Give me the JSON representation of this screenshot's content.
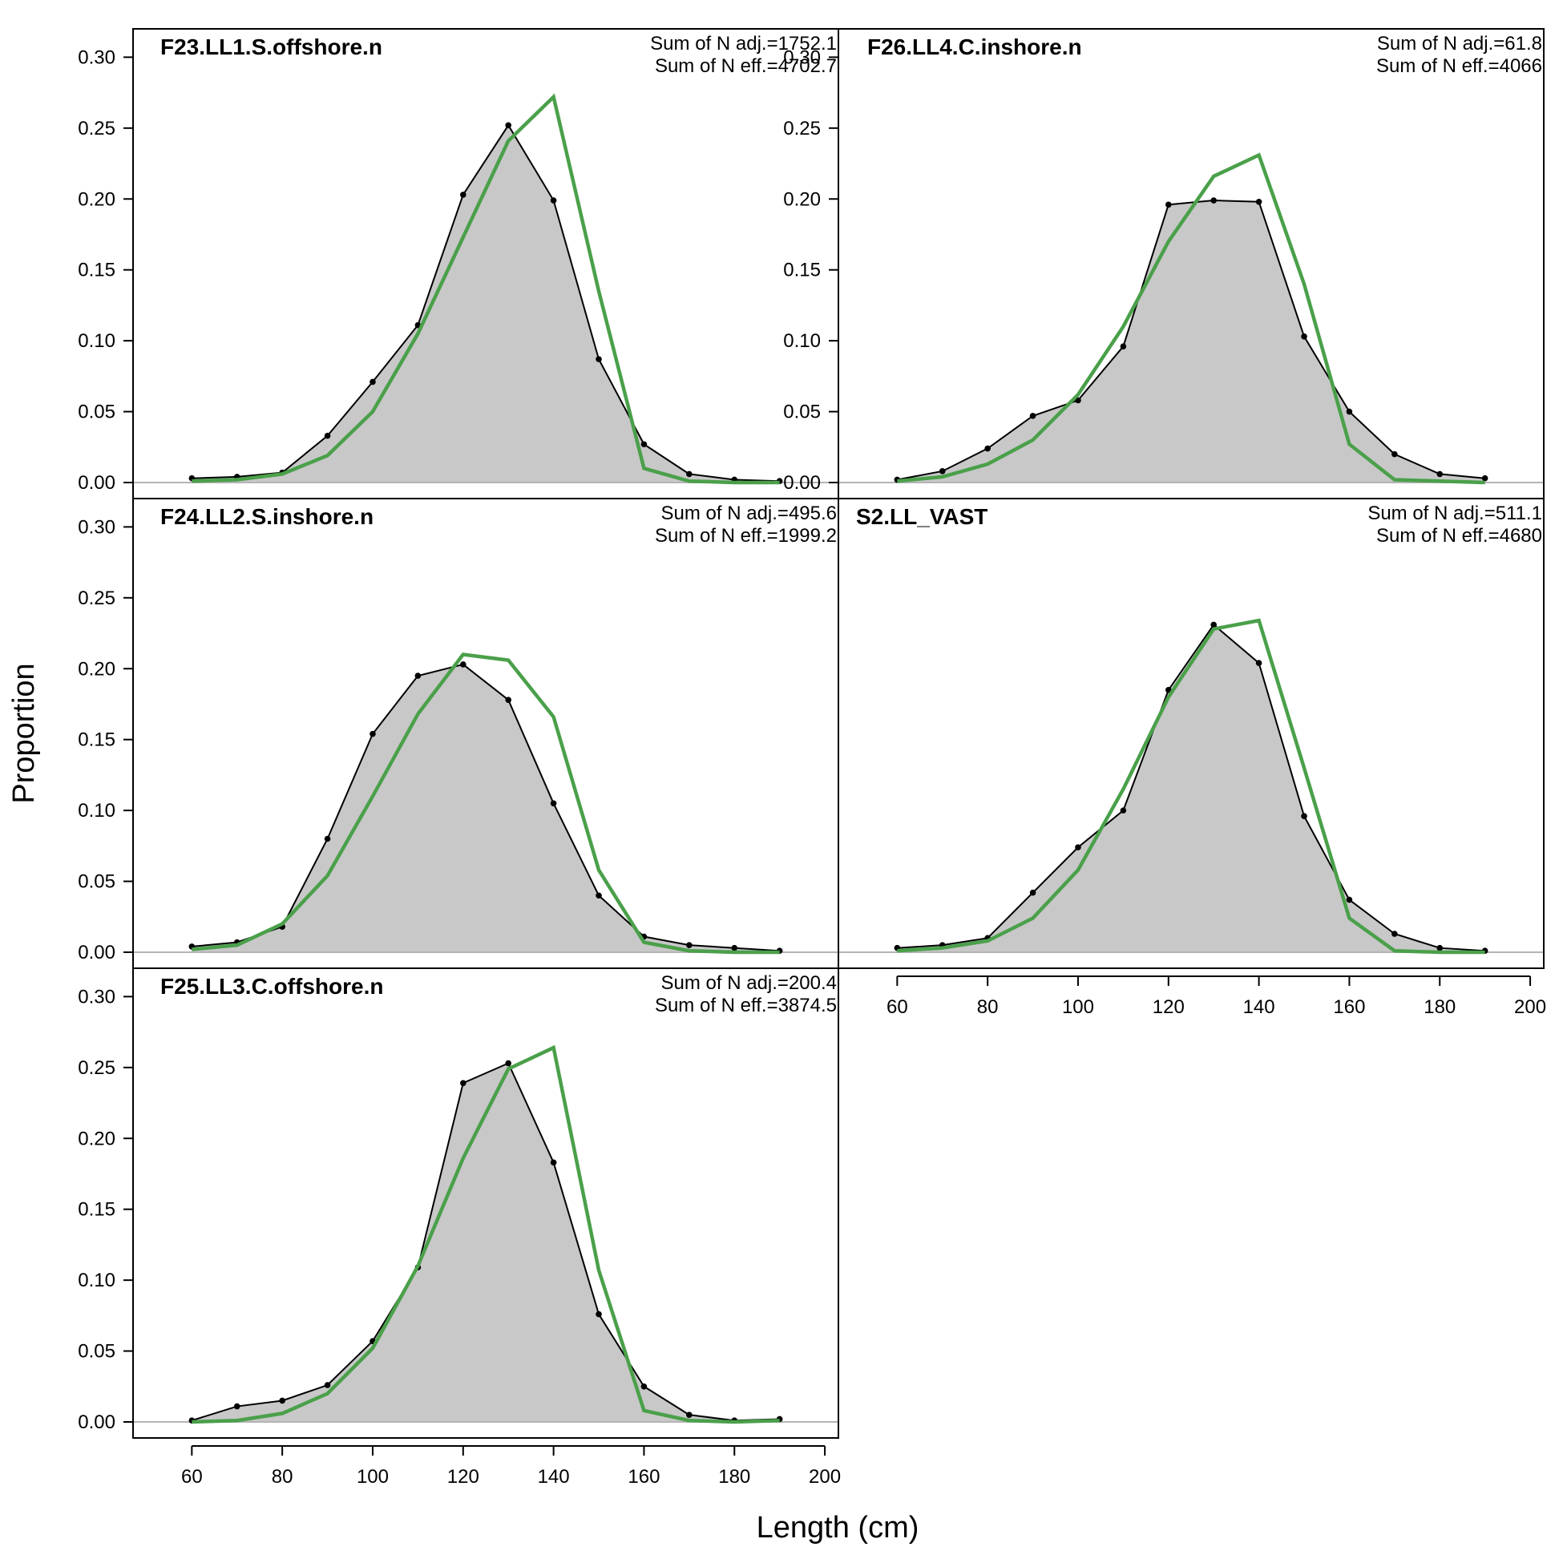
{
  "figure": {
    "xlabel": "Length (cm)",
    "ylabel": "Proportion"
  },
  "colors": {
    "observed_fill": "#c8c8c8",
    "observed_line": "#000000",
    "expected_line": "#4aa04a",
    "zero_line": "#b4b4b4"
  },
  "chart_data": [
    {
      "type": "area",
      "title": "F23.LL1.S.offshore.n",
      "sum_n_adj": "Sum of N adj.=1752.1",
      "sum_n_eff": "Sum of N eff.=4702.7",
      "x": [
        60,
        70,
        80,
        90,
        100,
        110,
        120,
        130,
        140,
        150,
        160,
        170,
        180,
        190
      ],
      "series": [
        {
          "values": [
            0.003,
            0.004,
            0.007,
            0.033,
            0.071,
            0.111,
            0.203,
            0.252,
            0.199,
            0.087,
            0.027,
            0.006,
            0.002,
            0.001
          ]
        },
        {
          "values": [
            0.001,
            0.002,
            0.006,
            0.019,
            0.05,
            0.105,
            0.173,
            0.241,
            0.272,
            0.135,
            0.01,
            0.001,
            0.0,
            0.0
          ]
        }
      ],
      "xlim": [
        47,
        203
      ],
      "ylim": [
        0,
        0.32
      ],
      "yticks": [
        "0.00",
        "0.05",
        "0.10",
        "0.15",
        "0.20",
        "0.25",
        "0.30"
      ]
    },
    {
      "type": "area",
      "title": "F26.LL4.C.inshore.n",
      "sum_n_adj": "Sum of N adj.=61.8",
      "sum_n_eff": "Sum of N eff.=4066",
      "x": [
        60,
        70,
        80,
        90,
        100,
        110,
        120,
        130,
        140,
        150,
        160,
        170,
        180,
        190
      ],
      "series": [
        {
          "values": [
            0.002,
            0.008,
            0.024,
            0.047,
            0.058,
            0.096,
            0.196,
            0.199,
            0.198,
            0.103,
            0.05,
            0.02,
            0.006,
            0.003
          ]
        },
        {
          "values": [
            0.001,
            0.004,
            0.013,
            0.03,
            0.062,
            0.11,
            0.17,
            0.216,
            0.231,
            0.14,
            0.027,
            0.002,
            0.001,
            0.0
          ]
        }
      ],
      "xlim": [
        47,
        203
      ],
      "ylim": [
        0,
        0.32
      ],
      "yticks": [
        "0.00",
        "0.05",
        "0.10",
        "0.15",
        "0.20",
        "0.25",
        "0.30"
      ]
    },
    {
      "type": "area",
      "title": "F24.LL2.S.inshore.n",
      "sum_n_adj": "Sum of N adj.=495.6",
      "sum_n_eff": "Sum of N eff.=1999.2",
      "x": [
        60,
        70,
        80,
        90,
        100,
        110,
        120,
        130,
        140,
        150,
        160,
        170,
        180,
        190
      ],
      "series": [
        {
          "values": [
            0.004,
            0.007,
            0.018,
            0.08,
            0.154,
            0.195,
            0.203,
            0.178,
            0.105,
            0.04,
            0.011,
            0.005,
            0.003,
            0.001
          ]
        },
        {
          "values": [
            0.002,
            0.005,
            0.02,
            0.054,
            0.11,
            0.168,
            0.21,
            0.206,
            0.166,
            0.058,
            0.007,
            0.001,
            0.0,
            0.0
          ]
        }
      ],
      "xlim": [
        47,
        203
      ],
      "ylim": [
        0,
        0.32
      ],
      "yticks": [
        "0.00",
        "0.05",
        "0.10",
        "0.15",
        "0.20",
        "0.25",
        "0.30"
      ]
    },
    {
      "type": "area",
      "title": "S2.LL_VAST",
      "sum_n_adj": "Sum of N adj.=511.1",
      "sum_n_eff": "Sum of N eff.=4680",
      "x": [
        60,
        70,
        80,
        90,
        100,
        110,
        120,
        130,
        140,
        150,
        160,
        170,
        180,
        190
      ],
      "series": [
        {
          "values": [
            0.003,
            0.005,
            0.01,
            0.042,
            0.074,
            0.1,
            0.185,
            0.231,
            0.204,
            0.096,
            0.037,
            0.013,
            0.003,
            0.001
          ]
        },
        {
          "values": [
            0.001,
            0.003,
            0.008,
            0.024,
            0.058,
            0.115,
            0.18,
            0.228,
            0.234,
            0.13,
            0.024,
            0.001,
            0.0,
            0.0
          ]
        }
      ],
      "xlim": [
        47,
        203
      ],
      "ylim": [
        0,
        0.32
      ],
      "xticks": [
        60,
        80,
        100,
        120,
        140,
        160,
        180,
        200
      ],
      "yticks": []
    },
    {
      "type": "area",
      "title": "F25.LL3.C.offshore.n",
      "sum_n_adj": "Sum of N adj.=200.4",
      "sum_n_eff": "Sum of N eff.=3874.5",
      "x": [
        60,
        70,
        80,
        90,
        100,
        110,
        120,
        130,
        140,
        150,
        160,
        170,
        180,
        190
      ],
      "series": [
        {
          "values": [
            0.001,
            0.011,
            0.015,
            0.026,
            0.057,
            0.109,
            0.239,
            0.253,
            0.183,
            0.076,
            0.025,
            0.005,
            0.001,
            0.002
          ]
        },
        {
          "values": [
            0.0,
            0.001,
            0.006,
            0.02,
            0.052,
            0.11,
            0.186,
            0.249,
            0.264,
            0.107,
            0.008,
            0.001,
            0.0,
            0.001
          ]
        }
      ],
      "xlim": [
        47,
        203
      ],
      "ylim": [
        0,
        0.32
      ],
      "xticks": [
        60,
        80,
        100,
        120,
        140,
        160,
        180,
        200
      ],
      "yticks": [
        "0.00",
        "0.05",
        "0.10",
        "0.15",
        "0.20",
        "0.25",
        "0.30"
      ]
    }
  ]
}
